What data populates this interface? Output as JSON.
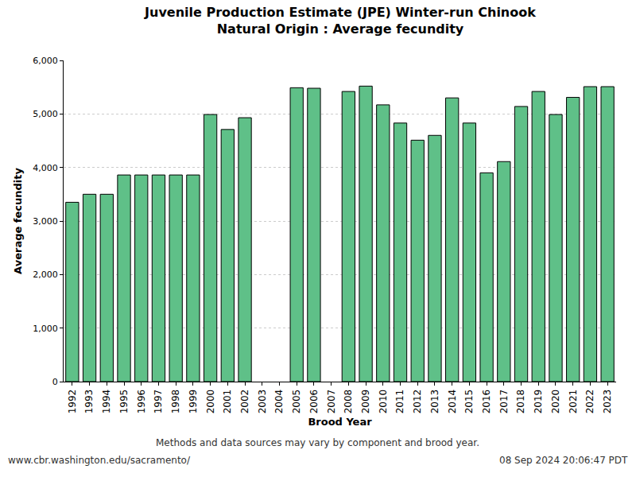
{
  "chart_data": {
    "type": "bar",
    "title": "Juvenile Production Estimate (JPE) Winter-run Chinook",
    "subtitle": "Natural Origin : Average fecundity",
    "x_label": "Brood Year",
    "y_label": "Average fecundity",
    "categories": [
      "1992",
      "1993",
      "1994",
      "1995",
      "1996",
      "1997",
      "1998",
      "1999",
      "2000",
      "2001",
      "2002",
      "2003",
      "2004",
      "2005",
      "2006",
      "2007",
      "2008",
      "2009",
      "2010",
      "2011",
      "2012",
      "2013",
      "2014",
      "2015",
      "2016",
      "2017",
      "2018",
      "2019",
      "2020",
      "2021",
      "2022",
      "2023"
    ],
    "values": [
      3350,
      3500,
      3500,
      3860,
      3860,
      3860,
      3860,
      3860,
      4990,
      4710,
      4930,
      null,
      null,
      5490,
      5480,
      null,
      5420,
      5520,
      5170,
      4830,
      4510,
      4600,
      5300,
      4830,
      3900,
      4110,
      5140,
      5420,
      4990,
      5310,
      5510,
      5510
    ],
    "color": "#5fc088",
    "ylim": [
      0,
      6000
    ],
    "yticks": [
      0,
      {
        "value": 1000,
        "label": "1,000"
      },
      {
        "value": 2000,
        "label": "2,000"
      },
      {
        "value": 3000,
        "label": "3,000"
      },
      {
        "value": 4000,
        "label": "4,000"
      },
      {
        "value": 5000,
        "label": "5,000"
      },
      {
        "value": 6000,
        "label": "6,000"
      }
    ],
    "grid": true,
    "annotations": [
      "Methods and data sources may vary by component and brood year.",
      "www.cbr.washington.edu/sacramento/",
      "08 Sep 2024 20:06:47 PDT"
    ]
  }
}
